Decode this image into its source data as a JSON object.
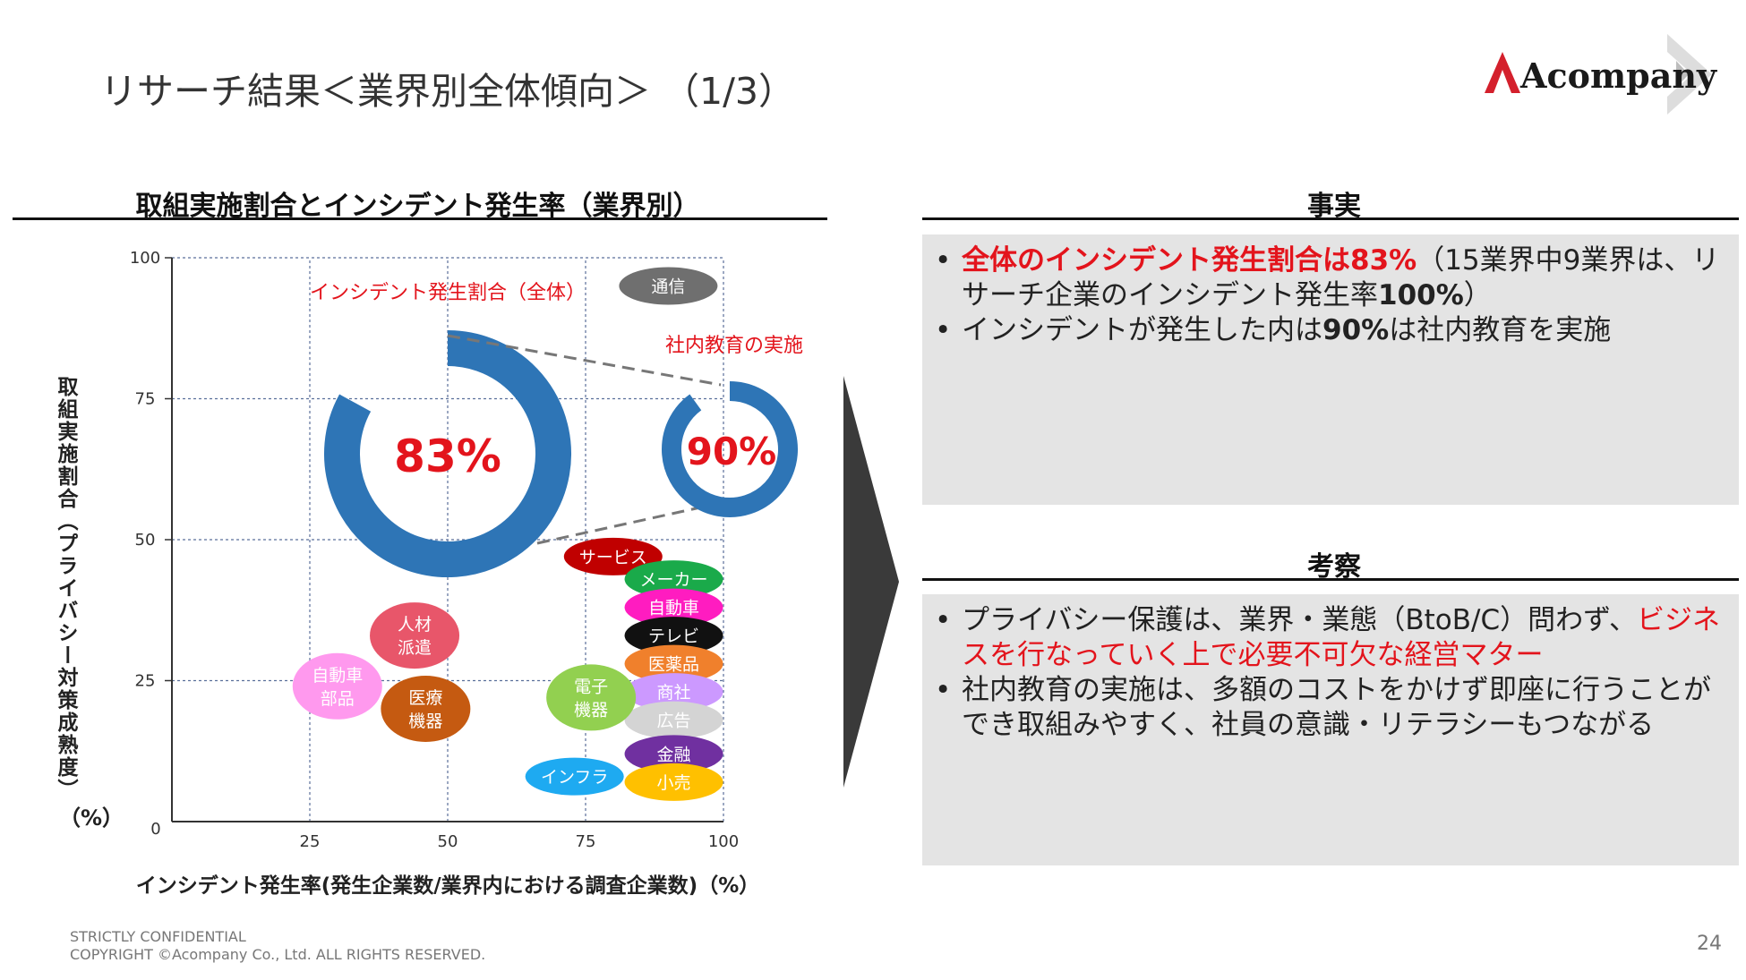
{
  "slide": {
    "title": "リサーチ結果＜業界別全体傾向＞ （1/3）",
    "page_number": "24",
    "footer_line1": "STRICTLY CONFIDENTIAL",
    "footer_line2": "COPYRIGHT ©Acompany Co., Ltd. ALL RIGHTS RESERVED."
  },
  "logo": {
    "text": "Acompany",
    "accent_color": "#d4202c"
  },
  "fact": {
    "heading": "事実",
    "b1_red": "全体のインシデント発生割合は83%",
    "b1_rest1": "（15業界中9業界は、リサーチ企業のインシデント発生率",
    "b1_bold": "100%",
    "b1_close": "）",
    "b2_pre": "インシデントが発生した内は",
    "b2_bold": "90%",
    "b2_post": "は社内教育を実施"
  },
  "insight": {
    "heading": "考察",
    "b1_pre": "プライバシー保護は、業界・業態（BtoB/C）問わず、",
    "b1_red": "ビジネスを行なっていく上で必要不可欠な経営マター",
    "b2": "社内教育の実施は、多額のコストをかけず即座に行うことができ取組みやすく、社員の意識・リテラシーもつながる"
  },
  "chart_data": {
    "type": "scatter",
    "title": "取組実施割合とインシデント発生率（業界別）",
    "xlabel": "インシデント発生率(発生企業数/業界内における調査企業数)（%）",
    "ylabel": "取組実施割合（プライバシー対策成熟度）",
    "y_unit_label": "（%）",
    "xlim": [
      0,
      100
    ],
    "ylim": [
      0,
      100
    ],
    "x_ticks": [
      "25",
      "50",
      "75",
      "100"
    ],
    "y_ticks": [
      "0",
      "25",
      "50",
      "75",
      "100"
    ],
    "grid": "dotted",
    "points": [
      {
        "label": "通信",
        "x": 90,
        "y": 95,
        "color": "#6f6f6f"
      },
      {
        "label": "サービス",
        "x": 80,
        "y": 47,
        "color": "#c00000"
      },
      {
        "label": "メーカー",
        "x": 91,
        "y": 43,
        "color": "#1aaa4a"
      },
      {
        "label": "自動車",
        "x": 91,
        "y": 38,
        "color": "#ff1cc0"
      },
      {
        "label": "テレビ",
        "x": 91,
        "y": 33,
        "color": "#111111"
      },
      {
        "label": "医薬品",
        "x": 91,
        "y": 28,
        "color": "#f0802c"
      },
      {
        "label": "商社",
        "x": 91,
        "y": 23,
        "color": "#cc99ff"
      },
      {
        "label": "広告",
        "x": 91,
        "y": 18,
        "color": "#d4d4d4"
      },
      {
        "label": "金融",
        "x": 91,
        "y": 12,
        "color": "#7030a0"
      },
      {
        "label": "小売",
        "x": 91,
        "y": 7,
        "color": "#ffc000"
      },
      {
        "label": "インフラ",
        "x": 73,
        "y": 8,
        "color": "#1eaaf1"
      },
      {
        "label": "電子\n機器",
        "x": 76,
        "y": 22,
        "color": "#92d050"
      },
      {
        "label": "人材\n派遣",
        "x": 44,
        "y": 33,
        "color": "#e8566a"
      },
      {
        "label": "自動車\n部品",
        "x": 30,
        "y": 24,
        "color": "#ff99ee"
      },
      {
        "label": "医療\n機器",
        "x": 46,
        "y": 20,
        "color": "#c55a11"
      }
    ],
    "donuts": [
      {
        "name": "インシデント発生割合（全体）",
        "value": 83,
        "label": "83%",
        "color": "#2e75b6"
      },
      {
        "name": "社内教育の実施",
        "value": 90,
        "label": "90%",
        "color": "#2e75b6"
      }
    ]
  }
}
